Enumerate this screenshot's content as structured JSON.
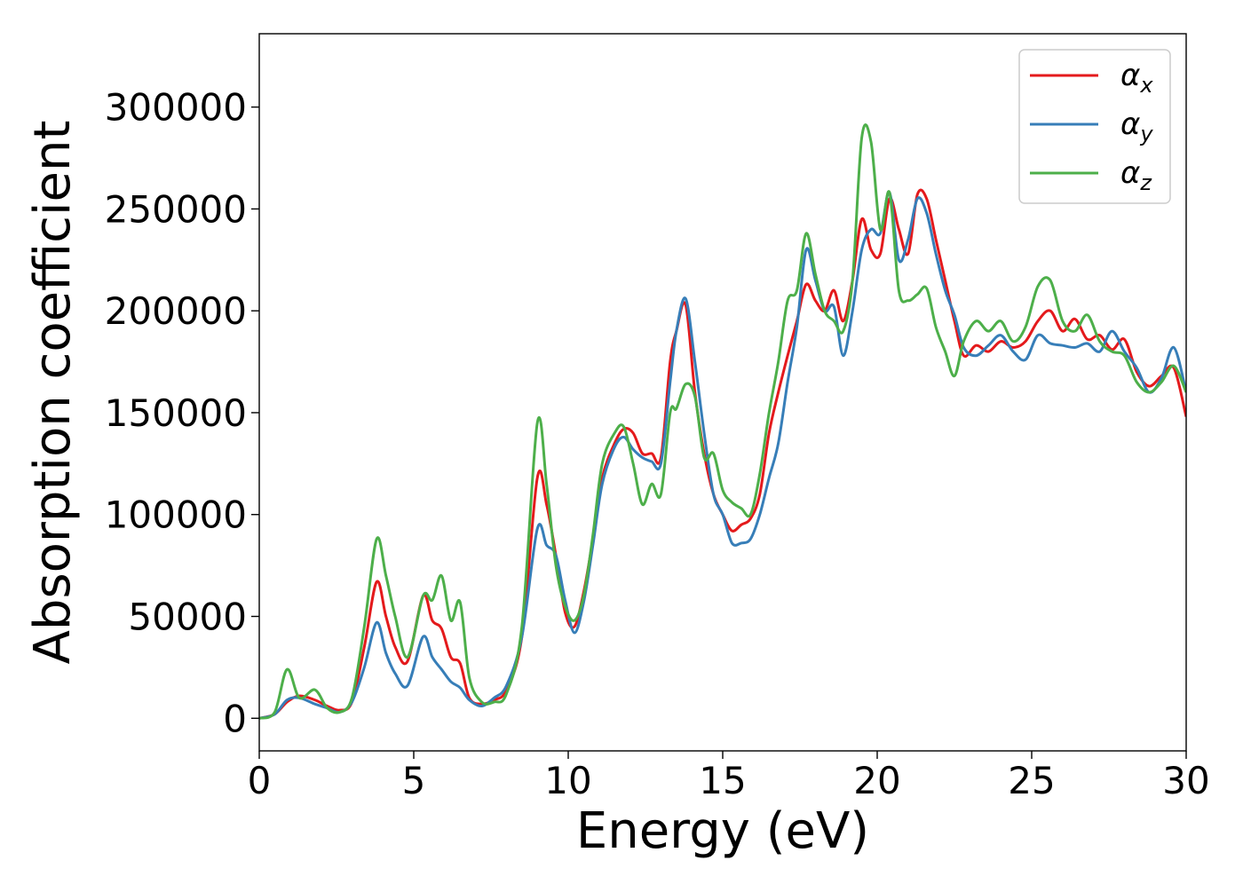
{
  "chart_data": {
    "type": "line",
    "title": "",
    "xlabel": "Energy (eV)",
    "ylabel": "Absorption coefficient",
    "xlim": [
      0,
      30
    ],
    "ylim": [
      -16000,
      336000
    ],
    "xticks": [
      0,
      5,
      10,
      15,
      20,
      25,
      30
    ],
    "yticks": [
      0,
      50000,
      100000,
      150000,
      200000,
      250000,
      300000
    ],
    "xtick_labels": [
      "0",
      "5",
      "10",
      "15",
      "20",
      "25",
      "30"
    ],
    "ytick_labels": [
      "0",
      "50000",
      "100000",
      "150000",
      "200000",
      "250000",
      "300000"
    ],
    "grid": false,
    "legend_position": "top-right",
    "x": [
      0,
      0.5,
      0.9,
      1.3,
      1.8,
      2.2,
      2.6,
      3.0,
      3.4,
      3.8,
      4.1,
      4.4,
      4.8,
      5.3,
      5.6,
      5.9,
      6.2,
      6.5,
      6.8,
      7.2,
      7.6,
      8.0,
      8.5,
      9.0,
      9.3,
      9.6,
      9.9,
      10.2,
      10.5,
      10.8,
      11.1,
      11.5,
      11.8,
      12.1,
      12.4,
      12.7,
      13.0,
      13.3,
      13.5,
      13.8,
      14.1,
      14.4,
      14.7,
      15.0,
      15.3,
      15.6,
      15.9,
      16.2,
      16.5,
      16.8,
      17.1,
      17.4,
      17.7,
      18.0,
      18.3,
      18.6,
      18.9,
      19.2,
      19.5,
      19.8,
      20.1,
      20.4,
      20.7,
      21.0,
      21.3,
      21.6,
      21.9,
      22.2,
      22.5,
      22.8,
      23.2,
      23.6,
      24.0,
      24.4,
      24.8,
      25.2,
      25.6,
      26.0,
      26.4,
      26.8,
      27.2,
      27.6,
      28.0,
      28.4,
      28.8,
      29.2,
      29.6,
      30.0
    ],
    "series": [
      {
        "name": "α",
        "subscript": "x",
        "color": "#e41a1c",
        "values": [
          0,
          2000,
          8000,
          11000,
          9000,
          6000,
          4000,
          8000,
          35000,
          67000,
          50000,
          35000,
          28000,
          60000,
          48000,
          44000,
          30000,
          27000,
          10000,
          7000,
          9000,
          14000,
          40000,
          118000,
          105000,
          80000,
          52000,
          45000,
          62000,
          88000,
          118000,
          135000,
          142000,
          140000,
          130000,
          130000,
          128000,
          175000,
          190000,
          203000,
          160000,
          130000,
          110000,
          100000,
          92000,
          95000,
          98000,
          110000,
          140000,
          160000,
          178000,
          195000,
          213000,
          205000,
          200000,
          210000,
          195000,
          215000,
          245000,
          230000,
          228000,
          255000,
          240000,
          228000,
          257000,
          255000,
          235000,
          215000,
          195000,
          178000,
          183000,
          180000,
          185000,
          182000,
          185000,
          195000,
          200000,
          190000,
          196000,
          186000,
          188000,
          181000,
          186000,
          170000,
          163000,
          168000,
          172000,
          148000
        ]
      },
      {
        "name": "α",
        "subscript": "y",
        "color": "#377eb8",
        "values": [
          0,
          2000,
          9000,
          10000,
          7000,
          5000,
          3000,
          8000,
          25000,
          47000,
          32000,
          22000,
          16000,
          40000,
          30000,
          24000,
          18000,
          15000,
          9000,
          6000,
          10000,
          16000,
          40000,
          93000,
          85000,
          80000,
          58000,
          42000,
          57000,
          85000,
          115000,
          133000,
          138000,
          132000,
          128000,
          126000,
          125000,
          165000,
          190000,
          206000,
          175000,
          140000,
          110000,
          100000,
          86000,
          86000,
          88000,
          100000,
          118000,
          135000,
          165000,
          192000,
          230000,
          215000,
          200000,
          202000,
          178000,
          200000,
          230000,
          240000,
          238000,
          258000,
          225000,
          235000,
          255000,
          248000,
          228000,
          210000,
          198000,
          182000,
          178000,
          183000,
          188000,
          180000,
          176000,
          188000,
          184000,
          183000,
          182000,
          184000,
          180000,
          190000,
          180000,
          172000,
          160000,
          167000,
          182000,
          160000
        ]
      },
      {
        "name": "α",
        "subscript": "z",
        "color": "#4daf4a",
        "values": [
          0,
          3000,
          24000,
          10000,
          14000,
          5000,
          3000,
          10000,
          45000,
          88000,
          70000,
          50000,
          30000,
          60000,
          58000,
          70000,
          48000,
          57000,
          20000,
          8000,
          8000,
          12000,
          45000,
          145000,
          115000,
          75000,
          55000,
          48000,
          60000,
          90000,
          125000,
          140000,
          143000,
          125000,
          105000,
          115000,
          110000,
          150000,
          152000,
          164000,
          158000,
          128000,
          130000,
          112000,
          106000,
          103000,
          100000,
          120000,
          150000,
          175000,
          205000,
          210000,
          238000,
          218000,
          200000,
          195000,
          190000,
          215000,
          285000,
          283000,
          240000,
          258000,
          210000,
          205000,
          208000,
          211000,
          192000,
          180000,
          168000,
          185000,
          195000,
          190000,
          195000,
          185000,
          192000,
          212000,
          215000,
          195000,
          190000,
          198000,
          185000,
          180000,
          178000,
          165000,
          160000,
          165000,
          173000,
          160000
        ]
      }
    ]
  }
}
